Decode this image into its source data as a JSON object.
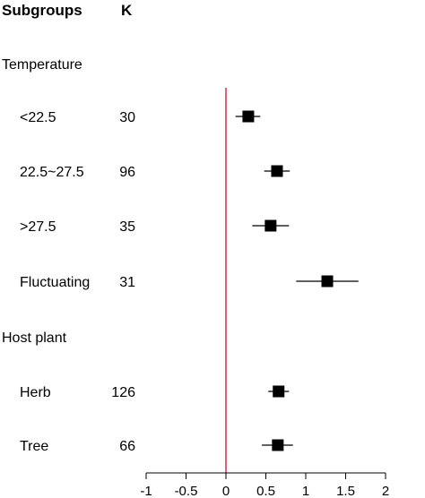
{
  "chart_data": {
    "type": "forest",
    "header": {
      "label_column": "Subgroups",
      "k_column": "K"
    },
    "groups": [
      {
        "name": "Temperature",
        "rows": [
          {
            "label": "<22.5",
            "k": "30",
            "estimate": 0.28,
            "ci": [
              0.12,
              0.43
            ]
          },
          {
            "label": "22.5~27.5",
            "k": "96",
            "estimate": 0.64,
            "ci": [
              0.48,
              0.8
            ]
          },
          {
            "label": ">27.5",
            "k": "35",
            "estimate": 0.56,
            "ci": [
              0.33,
              0.79
            ]
          },
          {
            "label": "Fluctuating",
            "k": "31",
            "estimate": 1.27,
            "ci": [
              0.88,
              1.66
            ]
          }
        ]
      },
      {
        "name": "Host plant",
        "rows": [
          {
            "label": "Herb",
            "k": "126",
            "estimate": 0.66,
            "ci": [
              0.53,
              0.79
            ]
          },
          {
            "label": "Tree",
            "k": "66",
            "estimate": 0.65,
            "ci": [
              0.45,
              0.84
            ]
          }
        ]
      }
    ],
    "x_axis": {
      "range": [
        -1,
        2
      ],
      "ticks": [
        -1,
        -0.5,
        0,
        0.5,
        1,
        1.5,
        2
      ],
      "tick_labels": [
        "-1",
        "-0.5",
        "0",
        "0.5",
        "1",
        "1.5",
        "2"
      ]
    },
    "reference_line": {
      "x": 0,
      "color": "#c8102e"
    },
    "marker_color": "#000000"
  }
}
